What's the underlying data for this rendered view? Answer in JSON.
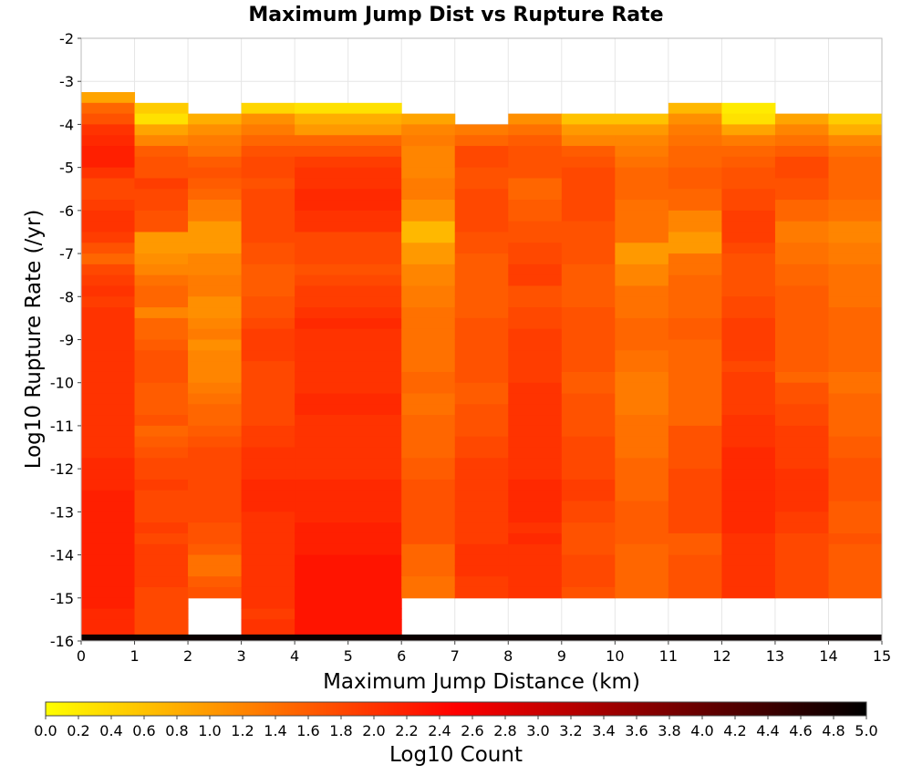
{
  "chart_data": {
    "type": "heatmap",
    "title": "Maximum Jump Dist vs Rupture Rate",
    "xlabel": "Maximum Jump Distance (km)",
    "ylabel": "Log10 Rupture Rate (/yr)",
    "xlim": [
      0,
      15
    ],
    "ylim": [
      -16,
      -2
    ],
    "x_ticks": [
      "0",
      "1",
      "2",
      "3",
      "4",
      "5",
      "6",
      "7",
      "8",
      "9",
      "10",
      "11",
      "12",
      "13",
      "14",
      "15"
    ],
    "y_ticks": [
      "-2",
      "-3",
      "-4",
      "-5",
      "-6",
      "-7",
      "-8",
      "-9",
      "-10",
      "-11",
      "-12",
      "-13",
      "-14",
      "-15",
      "-16"
    ],
    "grid": true,
    "x_bins": [
      [
        0,
        1
      ],
      [
        1,
        2
      ],
      [
        2,
        3
      ],
      [
        3,
        4
      ],
      [
        4,
        6
      ],
      [
        6,
        7
      ],
      [
        7,
        8
      ],
      [
        8,
        9
      ],
      [
        9,
        10
      ],
      [
        10,
        11
      ],
      [
        11,
        12
      ],
      [
        12,
        13
      ],
      [
        13,
        14
      ],
      [
        14,
        15
      ]
    ],
    "y_bin_width": 0.25,
    "columns": [
      {
        "top": -3.25,
        "cells": [
          0.9,
          1.5,
          1.7,
          2.0,
          2.1,
          2.2,
          2.2,
          2.0,
          1.8,
          1.8,
          1.9,
          2.0,
          2.0,
          1.9,
          1.7,
          1.5,
          1.8,
          1.9,
          2.0,
          1.9,
          2.0,
          2.0,
          2.0,
          2.0,
          2.0,
          2.0,
          2.0,
          2.0,
          2.0,
          2.0,
          2.0,
          2.0,
          2.0,
          2.0,
          2.1,
          2.1,
          2.1,
          2.2,
          2.2,
          2.2,
          2.2,
          2.2,
          2.2,
          2.2,
          2.2,
          2.2,
          2.2,
          2.2,
          2.1,
          2.1,
          2.1
        ]
      },
      {
        "top": -3.5,
        "cells": [
          0.5,
          0.3,
          0.9,
          1.2,
          1.6,
          1.7,
          1.7,
          1.9,
          1.8,
          1.8,
          1.7,
          1.7,
          1.0,
          1.0,
          1.1,
          1.2,
          1.4,
          1.5,
          1.5,
          1.2,
          1.5,
          1.5,
          1.6,
          1.7,
          1.7,
          1.7,
          1.6,
          1.6,
          1.6,
          1.7,
          1.5,
          1.6,
          1.7,
          1.8,
          1.8,
          1.9,
          1.8,
          1.8,
          1.8,
          1.9,
          1.8,
          1.9,
          1.9,
          1.9,
          1.9,
          1.8,
          1.8,
          1.8,
          1.8,
          1.8
        ]
      },
      {
        "top": -3.75,
        "cells": [
          0.8,
          1.1,
          1.3,
          1.4,
          1.6,
          1.7,
          1.6,
          1.5,
          1.3,
          1.3,
          1.0,
          1.0,
          1.0,
          1.2,
          1.2,
          1.3,
          1.3,
          1.1,
          1.1,
          1.2,
          1.3,
          1.1,
          1.2,
          1.2,
          1.2,
          1.3,
          1.4,
          1.5,
          1.5,
          1.6,
          1.7,
          1.8,
          1.8,
          1.8,
          1.8,
          1.8,
          1.8,
          1.8,
          1.7,
          1.7,
          1.6,
          1.4,
          1.4,
          1.6,
          1.7
        ]
      },
      {
        "top": -3.5,
        "cells": [
          0.4,
          1.1,
          1.3,
          1.5,
          1.7,
          1.8,
          1.8,
          1.7,
          1.8,
          1.8,
          1.8,
          1.8,
          1.8,
          1.7,
          1.7,
          1.6,
          1.6,
          1.6,
          1.7,
          1.7,
          1.8,
          1.9,
          1.9,
          1.9,
          1.8,
          1.8,
          1.8,
          1.8,
          1.8,
          1.8,
          1.9,
          1.9,
          2.0,
          2.0,
          2.0,
          2.1,
          2.1,
          2.1,
          2.0,
          2.0,
          2.0,
          2.0,
          2.0,
          2.0,
          2.0,
          2.0,
          2.0,
          1.9,
          2.0,
          2.0,
          2.0
        ]
      },
      {
        "top": -3.5,
        "cells": [
          0.3,
          0.8,
          1.0,
          1.5,
          1.7,
          1.9,
          2.0,
          2.0,
          2.1,
          2.1,
          2.0,
          2.0,
          1.8,
          1.8,
          1.8,
          1.7,
          1.8,
          1.9,
          1.9,
          2.0,
          2.1,
          2.0,
          2.0,
          2.0,
          2.0,
          2.0,
          2.0,
          2.1,
          2.1,
          2.0,
          2.0,
          2.0,
          2.0,
          2.0,
          2.0,
          2.1,
          2.1,
          2.1,
          2.1,
          2.2,
          2.2,
          2.2,
          2.3,
          2.3,
          2.3,
          2.3,
          2.3,
          2.3,
          2.3,
          2.3
        ]
      },
      {
        "top": -3.75,
        "cells": [
          0.9,
          1.2,
          1.3,
          1.2,
          1.2,
          1.2,
          1.3,
          1.3,
          1.1,
          1.1,
          0.7,
          0.7,
          1.0,
          1.0,
          1.2,
          1.2,
          1.3,
          1.3,
          1.4,
          1.4,
          1.4,
          1.4,
          1.4,
          1.4,
          1.5,
          1.5,
          1.4,
          1.4,
          1.5,
          1.5,
          1.5,
          1.5,
          1.6,
          1.6,
          1.7,
          1.7,
          1.7,
          1.7,
          1.7,
          1.7,
          1.5,
          1.5,
          1.5,
          1.4,
          1.4
        ]
      },
      {
        "top": -4.0,
        "cells": [
          1.3,
          1.5,
          1.8,
          1.8,
          1.7,
          1.7,
          1.8,
          1.8,
          1.8,
          1.8,
          1.7,
          1.7,
          1.6,
          1.6,
          1.6,
          1.6,
          1.6,
          1.6,
          1.7,
          1.7,
          1.7,
          1.7,
          1.7,
          1.7,
          1.6,
          1.6,
          1.7,
          1.7,
          1.7,
          1.8,
          1.8,
          1.9,
          1.9,
          1.9,
          1.9,
          1.9,
          1.9,
          1.9,
          1.9,
          2.0,
          2.0,
          2.0,
          1.9,
          1.9
        ]
      },
      {
        "top": -3.75,
        "cells": [
          1.1,
          1.4,
          1.6,
          1.7,
          1.7,
          1.7,
          1.5,
          1.5,
          1.6,
          1.6,
          1.7,
          1.7,
          1.8,
          1.8,
          1.9,
          1.9,
          1.7,
          1.7,
          1.8,
          1.8,
          1.9,
          1.9,
          1.9,
          1.9,
          1.9,
          2.0,
          2.0,
          2.0,
          2.0,
          2.0,
          2.0,
          2.0,
          2.0,
          2.0,
          2.1,
          2.1,
          2.1,
          2.1,
          2.0,
          2.1,
          2.0,
          2.0,
          2.0,
          2.0,
          2.0
        ]
      },
      {
        "top": -3.75,
        "cells": [
          0.6,
          1.0,
          1.2,
          1.6,
          1.7,
          1.8,
          1.8,
          1.8,
          1.8,
          1.8,
          1.7,
          1.7,
          1.7,
          1.7,
          1.6,
          1.6,
          1.6,
          1.6,
          1.7,
          1.7,
          1.7,
          1.7,
          1.7,
          1.7,
          1.6,
          1.6,
          1.7,
          1.7,
          1.7,
          1.7,
          1.8,
          1.8,
          1.8,
          1.8,
          1.9,
          1.9,
          1.8,
          1.8,
          1.7,
          1.7,
          1.7,
          1.8,
          1.8,
          1.8,
          1.7
        ]
      },
      {
        "top": -3.75,
        "cells": [
          0.6,
          1.0,
          1.2,
          1.3,
          1.4,
          1.5,
          1.5,
          1.5,
          1.4,
          1.4,
          1.4,
          1.4,
          1.0,
          1.0,
          1.2,
          1.2,
          1.4,
          1.4,
          1.4,
          1.5,
          1.5,
          1.5,
          1.4,
          1.4,
          1.3,
          1.3,
          1.3,
          1.3,
          1.4,
          1.4,
          1.4,
          1.4,
          1.5,
          1.5,
          1.5,
          1.5,
          1.6,
          1.6,
          1.6,
          1.6,
          1.5,
          1.5,
          1.5,
          1.5,
          1.5
        ]
      },
      {
        "top": -3.5,
        "cells": [
          0.7,
          1.1,
          1.3,
          1.4,
          1.5,
          1.5,
          1.6,
          1.6,
          1.5,
          1.5,
          1.2,
          1.2,
          1.0,
          1.0,
          1.4,
          1.4,
          1.5,
          1.5,
          1.5,
          1.5,
          1.6,
          1.6,
          1.5,
          1.5,
          1.5,
          1.5,
          1.5,
          1.5,
          1.5,
          1.5,
          1.7,
          1.7,
          1.7,
          1.7,
          1.8,
          1.8,
          1.8,
          1.8,
          1.8,
          1.8,
          1.6,
          1.6,
          1.7,
          1.7,
          1.7,
          1.7
        ]
      },
      {
        "top": -3.5,
        "cells": [
          0.2,
          0.3,
          0.9,
          1.3,
          1.5,
          1.6,
          1.7,
          1.7,
          1.8,
          1.8,
          1.9,
          1.9,
          1.9,
          1.8,
          1.7,
          1.7,
          1.7,
          1.7,
          1.8,
          1.8,
          1.9,
          1.9,
          1.9,
          1.9,
          1.8,
          1.9,
          1.9,
          1.9,
          1.9,
          2.0,
          2.0,
          2.0,
          2.1,
          2.1,
          2.1,
          2.1,
          2.1,
          2.1,
          2.1,
          2.1,
          2.0,
          2.0,
          2.0,
          2.0,
          2.0,
          2.0
        ]
      },
      {
        "top": -3.75,
        "cells": [
          0.9,
          1.2,
          1.4,
          1.6,
          1.8,
          1.8,
          1.7,
          1.7,
          1.5,
          1.5,
          1.3,
          1.3,
          1.4,
          1.4,
          1.5,
          1.5,
          1.6,
          1.6,
          1.6,
          1.6,
          1.6,
          1.6,
          1.6,
          1.6,
          1.5,
          1.7,
          1.7,
          1.8,
          1.8,
          1.9,
          1.9,
          1.9,
          1.9,
          2.0,
          2.0,
          2.0,
          2.0,
          1.9,
          1.9,
          1.8,
          1.8,
          1.8,
          1.8,
          1.8,
          1.8
        ]
      },
      {
        "top": -3.75,
        "cells": [
          0.5,
          0.8,
          1.2,
          1.4,
          1.5,
          1.5,
          1.5,
          1.5,
          1.4,
          1.4,
          1.2,
          1.2,
          1.3,
          1.3,
          1.4,
          1.4,
          1.4,
          1.4,
          1.5,
          1.5,
          1.5,
          1.5,
          1.5,
          1.5,
          1.4,
          1.4,
          1.5,
          1.5,
          1.5,
          1.5,
          1.6,
          1.6,
          1.7,
          1.7,
          1.7,
          1.7,
          1.6,
          1.6,
          1.6,
          1.7,
          1.6,
          1.6,
          1.6,
          1.6,
          1.6
        ]
      }
    ],
    "bottom_row": {
      "y_range": [
        -16,
        -15.85
      ],
      "value": 4.9
    },
    "colorbar": {
      "label": "Log10 Count",
      "range": [
        0,
        5
      ],
      "ticks": [
        "0.0",
        "0.2",
        "0.4",
        "0.6",
        "0.8",
        "1.0",
        "1.2",
        "1.4",
        "1.6",
        "1.8",
        "2.0",
        "2.2",
        "2.4",
        "2.6",
        "2.8",
        "3.0",
        "3.2",
        "3.4",
        "3.6",
        "3.8",
        "4.0",
        "4.2",
        "4.4",
        "4.6",
        "4.8",
        "5.0"
      ],
      "colors": [
        "#ffff00",
        "#ff8000",
        "#ff0000",
        "#800000",
        "#000000"
      ]
    }
  }
}
